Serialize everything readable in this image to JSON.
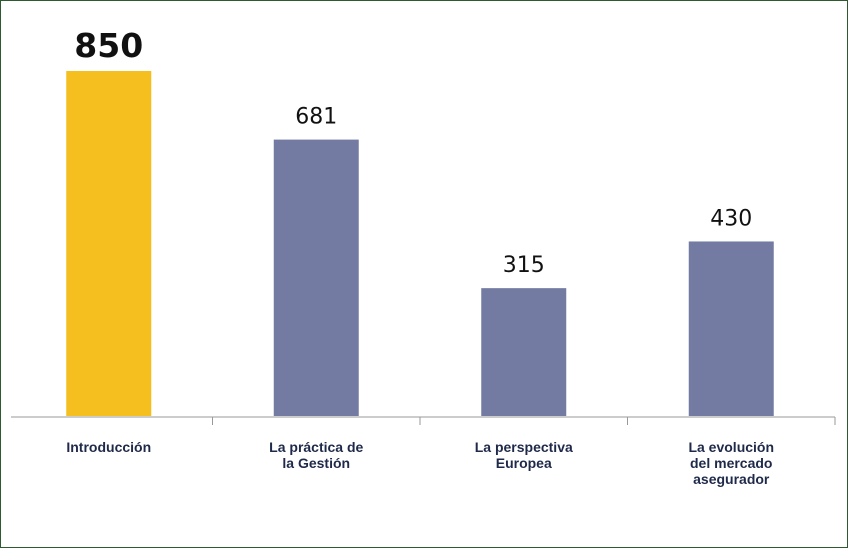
{
  "chart_data": {
    "type": "bar",
    "categories": [
      "Introducción",
      "La práctica de\nla Gestión",
      "La perspectiva\nEuropea",
      "La evolución\ndel mercado\nasegurador"
    ],
    "values": [
      850,
      681,
      315,
      430
    ],
    "colors": [
      "#f5bf1f",
      "#737ba3",
      "#737ba3",
      "#737ba3"
    ]
  }
}
